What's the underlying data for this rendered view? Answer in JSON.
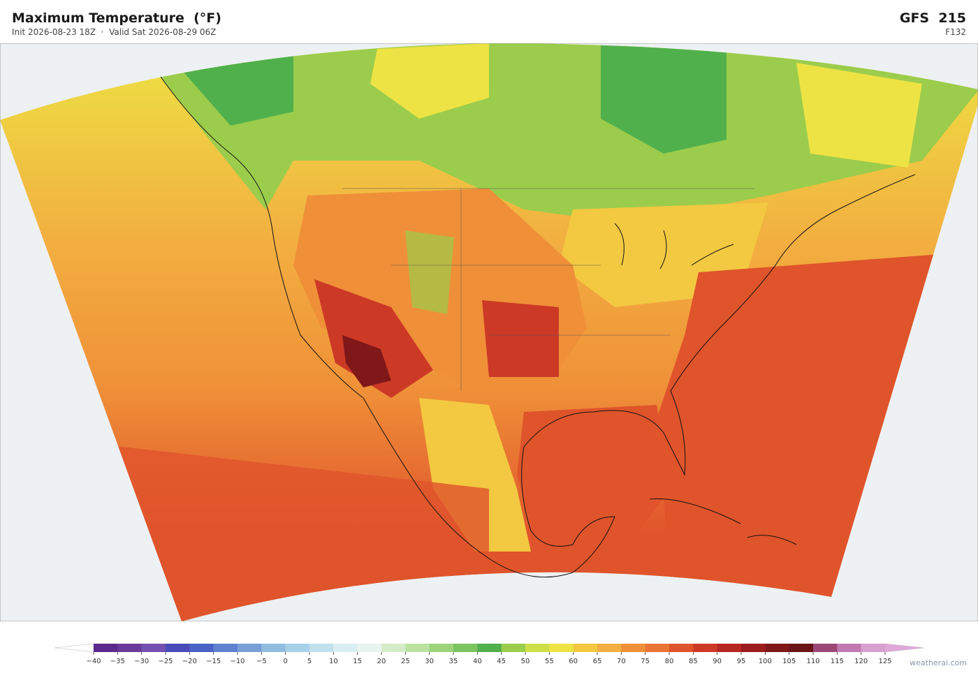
{
  "header": {
    "title": "Maximum Temperature  (°F)",
    "subtitle": "Init 2026-08-23 18Z  ·  Valid Sat 2026-08-29 06Z",
    "model": "GFS  215",
    "forecast_hour": "F132"
  },
  "colorbar": {
    "ticks": [
      {
        "value": -40,
        "label": "−40"
      },
      {
        "value": -35,
        "label": "−35"
      },
      {
        "value": -30,
        "label": "−30"
      },
      {
        "value": -25,
        "label": "−25"
      },
      {
        "value": -20,
        "label": "−20"
      },
      {
        "value": -15,
        "label": "−15"
      },
      {
        "value": -10,
        "label": "−10"
      },
      {
        "value": -5,
        "label": "−5"
      },
      0,
      5,
      10,
      15,
      20,
      25,
      30,
      35,
      40,
      45,
      50,
      55,
      60,
      65,
      70,
      75,
      80,
      85,
      90,
      95,
      100,
      105,
      110,
      115,
      120,
      125
    ],
    "colors": [
      "#5b2a8c",
      "#6a3a9a",
      "#7450b0",
      "#4a4ab8",
      "#4a62c8",
      "#6080d0",
      "#7aa0d8",
      "#90bce0",
      "#a8d0e8",
      "#c0e0ee",
      "#d8eef2",
      "#e8f4f0",
      "#d6ecc8",
      "#bce2a0",
      "#9cd47c",
      "#7cc460",
      "#50b04c",
      "#9ccc4c",
      "#cede48",
      "#ede344",
      "#f4c942",
      "#f2ae40",
      "#ef9038",
      "#ea7434",
      "#e0542c",
      "#cc3a26",
      "#b82822",
      "#9c1c1e",
      "#80181a",
      "#6a1418",
      "#9c4876",
      "#c07ab0",
      "#d8a0cc"
    ],
    "under_color": "#ffffff",
    "over_color": "#dfa8d8"
  },
  "watermark": "weatherai.com"
}
